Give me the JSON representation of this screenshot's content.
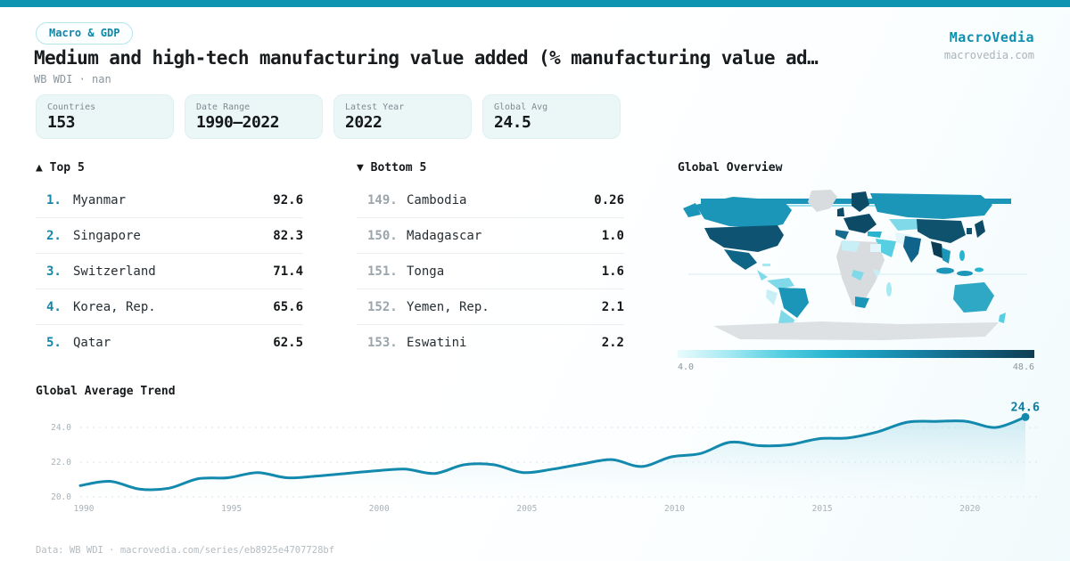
{
  "brand": {
    "name": "MacroVedia",
    "domain": "macrovedia.com"
  },
  "header": {
    "badge": "Macro & GDP",
    "title": "Medium and high-tech manufacturing value added (% manufacturing value ad…",
    "subtitle": "WB WDI · nan"
  },
  "stats": [
    {
      "label": "Countries",
      "value": "153"
    },
    {
      "label": "Date Range",
      "value": "1990–2022"
    },
    {
      "label": "Latest Year",
      "value": "2022"
    },
    {
      "label": "Global Avg",
      "value": "24.5"
    }
  ],
  "top5": {
    "arrow": "▲",
    "header": "Top 5",
    "rows": [
      {
        "rank": "1.",
        "name": "Myanmar",
        "value": "92.6"
      },
      {
        "rank": "2.",
        "name": "Singapore",
        "value": "82.3"
      },
      {
        "rank": "3.",
        "name": "Switzerland",
        "value": "71.4"
      },
      {
        "rank": "4.",
        "name": "Korea, Rep.",
        "value": "65.6"
      },
      {
        "rank": "5.",
        "name": "Qatar",
        "value": "62.5"
      }
    ]
  },
  "bottom5": {
    "arrow": "▼",
    "header": "Bottom 5",
    "rows": [
      {
        "rank": "149.",
        "name": "Cambodia",
        "value": "0.26"
      },
      {
        "rank": "150.",
        "name": "Madagascar",
        "value": "1.0"
      },
      {
        "rank": "151.",
        "name": "Tonga",
        "value": "1.6"
      },
      {
        "rank": "152.",
        "name": "Yemen, Rep.",
        "value": "2.1"
      },
      {
        "rank": "153.",
        "name": "Eswatini",
        "value": "2.2"
      }
    ]
  },
  "map": {
    "title": "Global Overview",
    "scale_min": "4.0",
    "scale_max": "48.6",
    "scale_colors": [
      "#eafbfd",
      "#a5e9f2",
      "#57cfe2",
      "#27b4cf",
      "#1a96b8",
      "#15789a",
      "#115a77",
      "#0d3d52"
    ]
  },
  "trend": {
    "title": "Global Average Trend",
    "end_label": "24.6"
  },
  "chart_data": {
    "type": "line",
    "title": "Global Average Trend",
    "xlabel": "",
    "ylabel": "",
    "x": [
      1990,
      1991,
      1992,
      1993,
      1994,
      1995,
      1996,
      1997,
      1998,
      1999,
      2000,
      2001,
      2002,
      2003,
      2004,
      2005,
      2006,
      2007,
      2008,
      2009,
      2010,
      2011,
      2012,
      2013,
      2014,
      2015,
      2016,
      2017,
      2018,
      2019,
      2020,
      2021,
      2022
    ],
    "values": [
      20.65,
      20.9,
      20.45,
      20.5,
      21.05,
      21.1,
      21.4,
      21.1,
      21.2,
      21.35,
      21.5,
      21.6,
      21.35,
      21.85,
      21.85,
      21.4,
      21.6,
      21.9,
      22.15,
      21.75,
      22.3,
      22.5,
      23.15,
      22.95,
      23.0,
      23.35,
      23.4,
      23.75,
      24.3,
      24.35,
      24.35,
      24.0,
      24.6
    ],
    "ylim": [
      19.8,
      25.2
    ],
    "yticks": [
      20.0,
      22.0,
      24.0
    ],
    "xticks": [
      1990,
      1995,
      2000,
      2005,
      2010,
      2015,
      2020
    ],
    "grid": "dashed-horizontal",
    "legend": "none",
    "line_color": "#1389ad",
    "end_label": "24.6",
    "end_label_color": "#0c7da1"
  },
  "footer": {
    "text": "Data: WB WDI · macrovedia.com/series/eb8925e4707728bf"
  },
  "colors": {
    "accent_teal": "#0e93b1",
    "badge_text": "#0d87a8",
    "stat_card_bg": "#ebf6f6",
    "rank_top": "#1486a8",
    "rank_bottom": "#9aa5ab",
    "map_dark": "#0d4f6c",
    "map_mid": "#1b96b8",
    "map_light": "#7fd9e9",
    "map_nodata": "#d8dcde"
  }
}
